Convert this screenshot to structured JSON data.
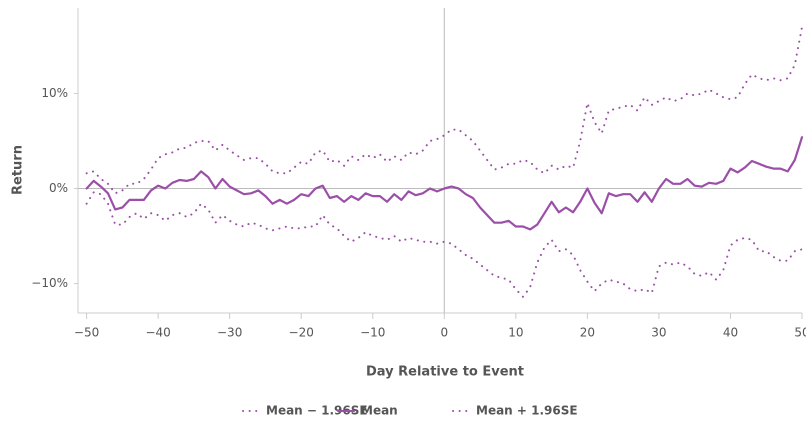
{
  "chart_data": {
    "type": "line",
    "xlabel": "Day Relative to Event",
    "ylabel": "Return",
    "x": [
      -50,
      -49,
      -48,
      -47,
      -46,
      -45,
      -44,
      -43,
      -42,
      -41,
      -40,
      -39,
      -38,
      -37,
      -36,
      -35,
      -34,
      -33,
      -32,
      -31,
      -30,
      -29,
      -28,
      -27,
      -26,
      -25,
      -24,
      -23,
      -22,
      -21,
      -20,
      -19,
      -18,
      -17,
      -16,
      -15,
      -14,
      -13,
      -12,
      -11,
      -10,
      -9,
      -8,
      -7,
      -6,
      -5,
      -4,
      -3,
      -2,
      -1,
      0,
      1,
      2,
      3,
      4,
      5,
      6,
      7,
      8,
      9,
      10,
      11,
      12,
      13,
      14,
      15,
      16,
      17,
      18,
      19,
      20,
      21,
      22,
      23,
      24,
      25,
      26,
      27,
      28,
      29,
      30,
      31,
      32,
      33,
      34,
      35,
      36,
      37,
      38,
      39,
      40,
      41,
      42,
      43,
      44,
      45,
      46,
      47,
      48,
      49,
      50
    ],
    "series": [
      {
        "name": "Mean − 1.96SE",
        "color": "#9b4fa8",
        "style": "dotted",
        "values": [
          -1.6,
          -0.4,
          -0.6,
          -1.6,
          -3.8,
          -3.8,
          -3,
          -2.6,
          -3.2,
          -2.6,
          -2.8,
          -3.4,
          -2.8,
          -2.6,
          -3,
          -2.6,
          -1.6,
          -2.2,
          -3.6,
          -2.8,
          -3.4,
          -3.8,
          -4,
          -3.6,
          -3.8,
          -4.2,
          -4.4,
          -4.2,
          -4,
          -4.2,
          -4.2,
          -4,
          -4,
          -2.8,
          -3.8,
          -4.2,
          -5,
          -5.6,
          -5.2,
          -4.6,
          -5,
          -5.2,
          -5.4,
          -5,
          -5.6,
          -5.2,
          -5.4,
          -5.6,
          -5.6,
          -5.8,
          -5.6,
          -5.8,
          -6.4,
          -7,
          -7.4,
          -8,
          -8.6,
          -9.2,
          -9.4,
          -9.6,
          -10.6,
          -11.4,
          -10.4,
          -7.8,
          -6.2,
          -5.4,
          -6.6,
          -6.4,
          -7,
          -8.6,
          -9.8,
          -10.8,
          -10,
          -9.6,
          -9.8,
          -10,
          -10.6,
          -10.8,
          -10.6,
          -11,
          -8.2,
          -7.8,
          -8,
          -7.8,
          -8.2,
          -9,
          -9.2,
          -8.8,
          -9.6,
          -8.6,
          -6,
          -5.4,
          -5.2,
          -5.4,
          -6.6,
          -6.6,
          -7.2,
          -7.6,
          -7.6,
          -6.6,
          -6.4
        ]
      },
      {
        "name": "Mean",
        "color": "#9b4fa8",
        "style": "solid",
        "values": [
          0,
          0.8,
          0.2,
          -0.5,
          -2.2,
          -2,
          -1.2,
          -1.2,
          -1.2,
          -0.2,
          0.3,
          0,
          0.6,
          0.9,
          0.8,
          1,
          1.8,
          1.2,
          0,
          1,
          0.2,
          -0.2,
          -0.6,
          -0.5,
          -0.2,
          -0.8,
          -1.6,
          -1.2,
          -1.6,
          -1.2,
          -0.6,
          -0.8,
          0,
          0.3,
          -1,
          -0.8,
          -1.4,
          -0.8,
          -1.2,
          -0.5,
          -0.8,
          -0.8,
          -1.4,
          -0.6,
          -1.2,
          -0.3,
          -0.7,
          -0.5,
          0,
          -0.3,
          0,
          0.2,
          0,
          -0.6,
          -1,
          -2,
          -2.8,
          -3.6,
          -3.6,
          -3.4,
          -4,
          -4,
          -4.3,
          -3.8,
          -2.6,
          -1.4,
          -2.5,
          -2,
          -2.5,
          -1.4,
          0,
          -1.5,
          -2.6,
          -0.5,
          -0.8,
          -0.6,
          -0.6,
          -1.4,
          -0.4,
          -1.4,
          0,
          1,
          0.5,
          0.5,
          1,
          0.3,
          0.2,
          0.6,
          0.5,
          0.8,
          2.1,
          1.7,
          2.2,
          2.9,
          2.6,
          2.3,
          2.1,
          2.1,
          1.8,
          3,
          5.4
        ]
      },
      {
        "name": "Mean + 1.96SE",
        "color": "#9b4fa8",
        "style": "dotted",
        "values": [
          1.6,
          1.8,
          1,
          0.5,
          -0.5,
          -0.2,
          0.5,
          0.5,
          1,
          2,
          3.2,
          3.6,
          3.8,
          4.2,
          4.3,
          4.8,
          5,
          5,
          4,
          4.6,
          4,
          3.5,
          3,
          3.2,
          3.2,
          2.6,
          1.8,
          1.6,
          1.6,
          2.2,
          2.8,
          2.6,
          3.8,
          4,
          2.8,
          3,
          2.4,
          3.4,
          3,
          3.6,
          3.2,
          3.6,
          2.8,
          3.4,
          3,
          3.8,
          3.6,
          4,
          5,
          5.2,
          5.6,
          6.2,
          6.2,
          5.6,
          5,
          4,
          3,
          2,
          2.2,
          2.6,
          2.6,
          3,
          2.8,
          2,
          1.6,
          2.4,
          2,
          2.4,
          2.2,
          5,
          9,
          7,
          5.8,
          8.2,
          8.4,
          8.6,
          8.8,
          8.2,
          9.6,
          8.8,
          9.2,
          9.6,
          9.2,
          9.4,
          10,
          9.8,
          10,
          10.4,
          10,
          9.6,
          9.4,
          9.6,
          11,
          12,
          11.6,
          11.4,
          11.6,
          11.4,
          11.6,
          13,
          17
        ]
      }
    ],
    "xlim": [
      -51.2,
      50
    ],
    "ylim": [
      -13.1,
      19
    ],
    "xticks": [
      {
        "value": -50,
        "label": "−50"
      },
      {
        "value": -40,
        "label": "−40"
      },
      {
        "value": -30,
        "label": "−30"
      },
      {
        "value": -20,
        "label": "−20"
      },
      {
        "value": -10,
        "label": "−10"
      },
      0,
      10,
      20,
      30,
      40,
      50
    ],
    "yticks": [
      {
        "value": -10,
        "label": "−10%"
      },
      {
        "value": 0,
        "label": "0%"
      },
      {
        "value": 10,
        "label": "10%"
      }
    ],
    "zero_lines": true,
    "legend": "bottom"
  }
}
